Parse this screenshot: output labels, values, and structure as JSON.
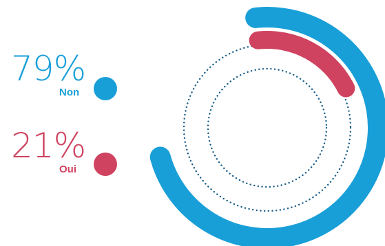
{
  "chart_data": {
    "type": "pie",
    "style": "concentric-arcs",
    "categories": [
      "Non",
      "Oui"
    ],
    "values": [
      79,
      21
    ],
    "value_labels": [
      "79%",
      "21%"
    ],
    "title": "",
    "colors": {
      "Non": "#199fd8",
      "Oui": "#cf4360",
      "dotted_ring": "#1a5f8a"
    }
  }
}
